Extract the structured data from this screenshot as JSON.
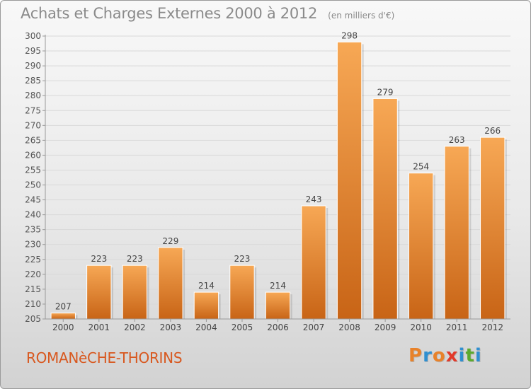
{
  "header": {
    "title": "Achats et Charges Externes 2000 à 2012",
    "unit": "(en milliers d'€)"
  },
  "footer": {
    "commune": "ROMANèCHE-THORINS",
    "logo_text": "Proxiti",
    "logo_colors": [
      "#e8822a",
      "#2f8fd0",
      "#e8822a",
      "#e23a2a",
      "#2f8fd0",
      "#5caa2e",
      "#2f8fd0"
    ]
  },
  "chart_data": {
    "type": "bar",
    "title": "Achats et Charges Externes 2000 à 2012",
    "subtitle": "(en milliers d'€)",
    "xlabel": "",
    "ylabel": "",
    "categories": [
      "2000",
      "2001",
      "2002",
      "2003",
      "2004",
      "2005",
      "2006",
      "2007",
      "2008",
      "2009",
      "2010",
      "2011",
      "2012"
    ],
    "values": [
      207,
      223,
      223,
      229,
      214,
      223,
      214,
      243,
      298,
      279,
      254,
      263,
      266
    ],
    "ylim": [
      205,
      300
    ],
    "ytick_step": 5,
    "grid": true,
    "legend": "none",
    "bar_color": "#e8832f",
    "bar_color_light": "#f7a855",
    "bar_color_dark": "#c86416"
  }
}
